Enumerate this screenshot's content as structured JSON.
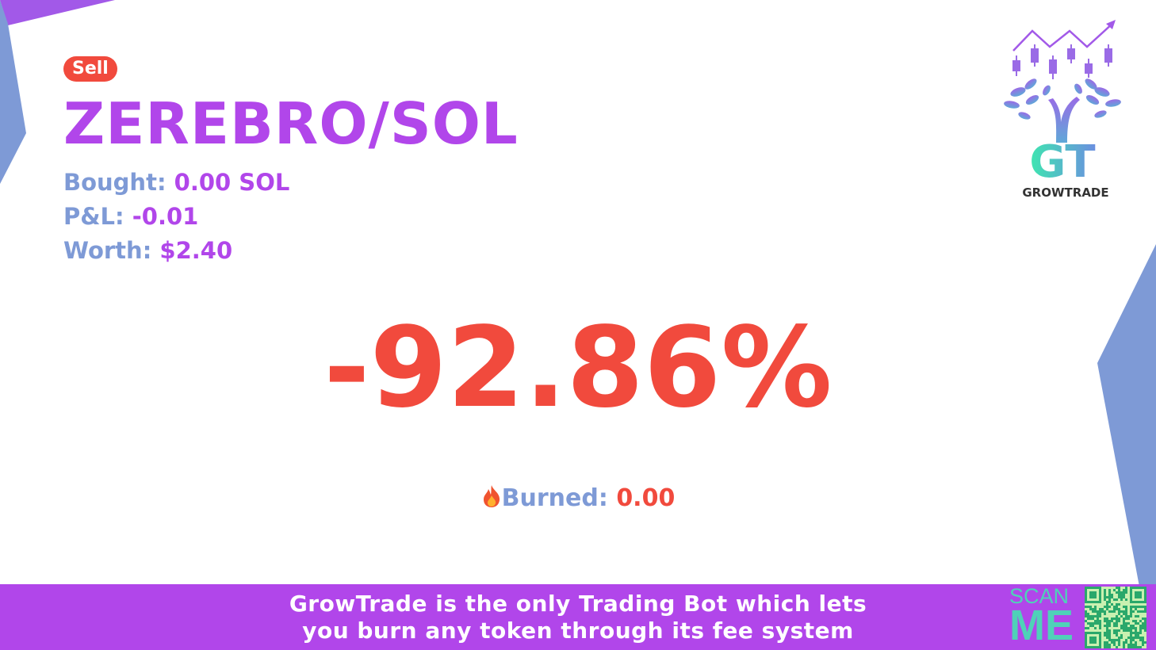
{
  "trade": {
    "side_badge": "Sell",
    "pair": "ZEREBRO/SOL",
    "bought_label": "Bought:",
    "bought_value": "0.00 SOL",
    "pnl_label": "P&L:",
    "pnl_value": "-0.01",
    "worth_label": "Worth:",
    "worth_value": "$2.40",
    "percent_change": "-92.86%",
    "burned_icon": "fire-icon",
    "burned_label": "Burned:",
    "burned_value": "0.00"
  },
  "brand": {
    "name": "GROWTRADE",
    "monogram": "GT"
  },
  "footer": {
    "line1": "GrowTrade is the only Trading Bot which lets",
    "line2": "you burn any token through its fee system",
    "scan_line1": "SCAN",
    "scan_line2": "ME"
  },
  "colors": {
    "accent_purple": "#b146ea",
    "label_blue": "#7e9ad6",
    "loss_red": "#f14a3d",
    "teal": "#4fd1b8"
  }
}
